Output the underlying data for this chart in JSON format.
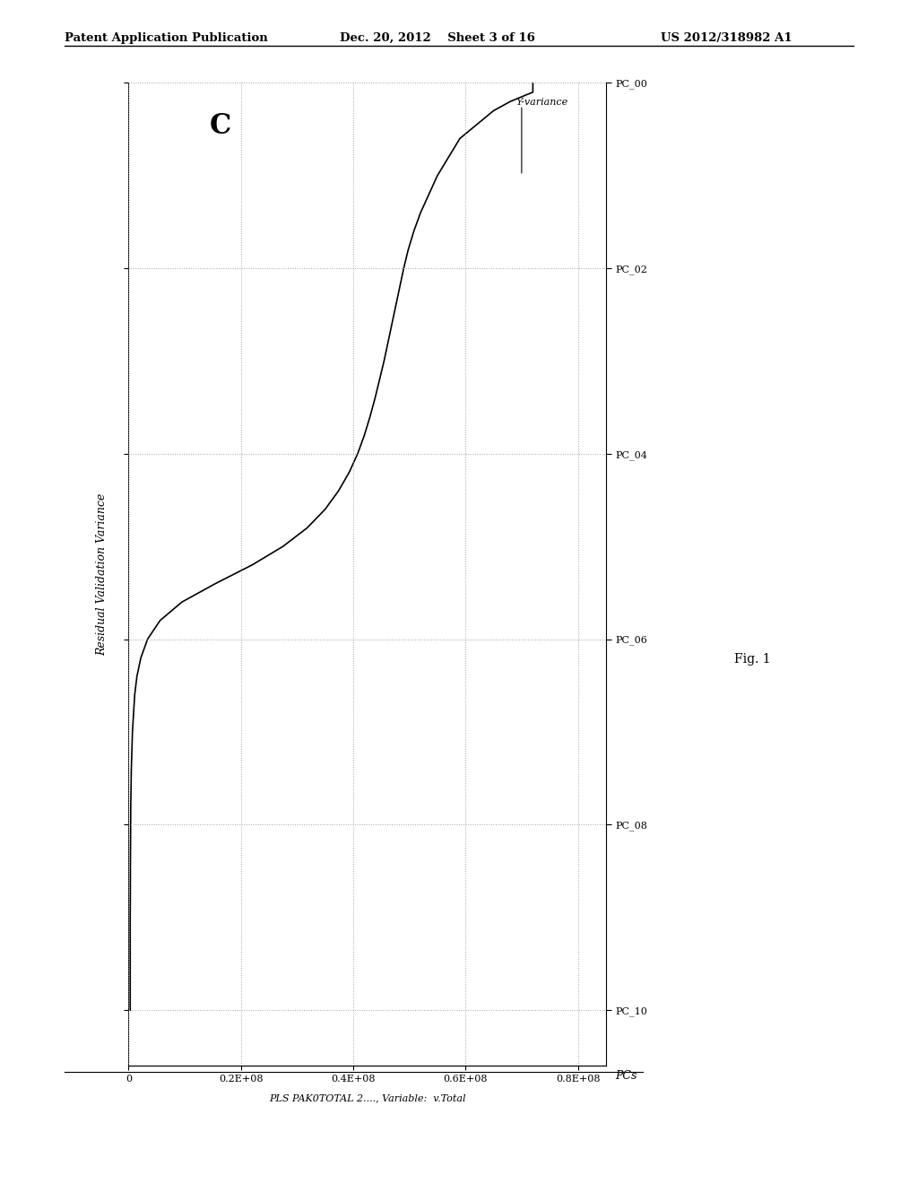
{
  "patent_header_left": "Patent Application Publication",
  "patent_header_mid": "Dec. 20, 2012    Sheet 3 of 16",
  "patent_header_right": "US 2012/318982 A1",
  "panel_label": "C",
  "ylabel_rotated": "Residual Validation Variance",
  "xlabel_bottom": "PLS PAK0TOTAL 2...., Variable:  v.Total",
  "pc_axis_label": "PCs",
  "yvariance_annotation": "Y-variance",
  "fig_label": "Fig. 1",
  "x_ticks_values": [
    0,
    20000000,
    40000000,
    60000000,
    80000000
  ],
  "x_tick_labels": [
    "0",
    "0.2E+08",
    "0.4E+08",
    "0.6E+08",
    "0.8E+08"
  ],
  "y_ticks_values": [
    0,
    1,
    2,
    3,
    4,
    5
  ],
  "y_tick_labels": [
    "PC_00",
    "PC_02",
    "PC_04",
    "PC_06",
    "PC_08",
    "PC_10"
  ],
  "xmin": 0,
  "xmax": 85000000,
  "ymin": 0,
  "ymax": 5.3,
  "line_color": "#000000",
  "bg_color": "#ffffff",
  "grid_color": "#999999",
  "curve_variance": [
    72000000,
    72000000,
    68000000,
    65000000,
    63000000,
    61000000,
    59000000,
    57000000,
    55000000,
    53500000,
    52000000,
    50800000,
    49800000,
    49000000,
    48300000,
    47600000,
    46900000,
    46200000,
    45500000,
    44700000,
    43900000,
    43000000,
    42000000,
    40800000,
    39300000,
    37400000,
    35000000,
    31800000,
    27500000,
    22000000,
    15500000,
    9500000,
    5600000,
    3400000,
    2200000,
    1500000,
    1100000,
    900000,
    700000,
    600000,
    500000,
    450000,
    400000,
    380000,
    360000,
    340000,
    330000,
    320000,
    300000,
    300000
  ],
  "curve_pc": [
    0.0,
    0.05,
    0.1,
    0.15,
    0.2,
    0.25,
    0.3,
    0.4,
    0.5,
    0.6,
    0.7,
    0.8,
    0.9,
    1.0,
    1.1,
    1.2,
    1.3,
    1.4,
    1.5,
    1.6,
    1.7,
    1.8,
    1.9,
    2.0,
    2.1,
    2.2,
    2.3,
    2.4,
    2.5,
    2.6,
    2.7,
    2.8,
    2.9,
    3.0,
    3.1,
    3.2,
    3.3,
    3.4,
    3.5,
    3.6,
    3.7,
    3.8,
    3.9,
    4.0,
    4.1,
    4.2,
    4.3,
    4.4,
    4.5,
    5.0
  ]
}
